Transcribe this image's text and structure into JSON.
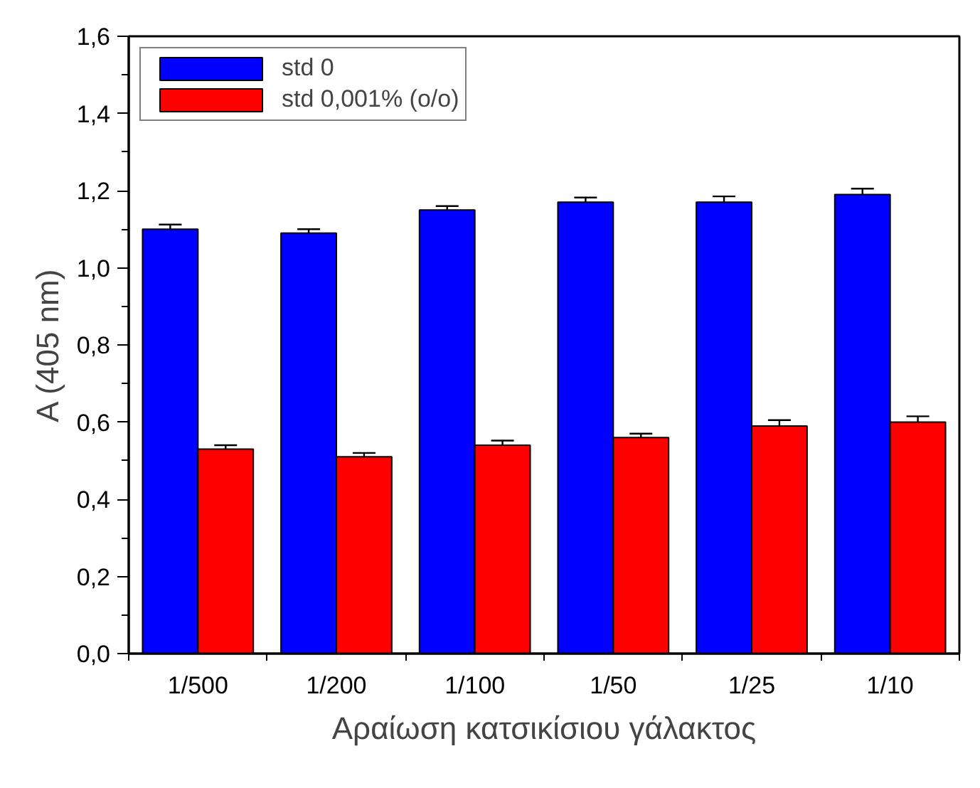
{
  "chart_data": {
    "type": "bar",
    "xlabel": "Αραίωση κατσικίσιου γάλακτος",
    "ylabel": "A (405 nm)",
    "categories": [
      "1/500",
      "1/200",
      "1/100",
      "1/50",
      "1/25",
      "1/10"
    ],
    "series": [
      {
        "name": "std 0",
        "color": "#0000ff",
        "values": [
          1.1,
          1.09,
          1.15,
          1.17,
          1.17,
          1.19
        ],
        "errors": [
          0.012,
          0.01,
          0.01,
          0.012,
          0.015,
          0.015
        ]
      },
      {
        "name": "std 0,001% (o/o)",
        "color": "#ff0000",
        "values": [
          0.53,
          0.51,
          0.54,
          0.56,
          0.59,
          0.6
        ],
        "errors": [
          0.01,
          0.01,
          0.012,
          0.01,
          0.015,
          0.015
        ]
      }
    ],
    "ylim": [
      0,
      1.6
    ],
    "yticks": [
      {
        "value": 0,
        "label": "0,0"
      },
      {
        "value": 0.2,
        "label": "0,2"
      },
      {
        "value": 0.4,
        "label": "0,4"
      },
      {
        "value": 0.6,
        "label": "0,6"
      },
      {
        "value": 0.8,
        "label": "0,8"
      },
      {
        "value": 1.0,
        "label": "1,0"
      },
      {
        "value": 1.2,
        "label": "1,2"
      },
      {
        "value": 1.4,
        "label": "1,4"
      },
      {
        "value": 1.6,
        "label": "1,6"
      }
    ],
    "grid": false,
    "legend": "top left"
  }
}
